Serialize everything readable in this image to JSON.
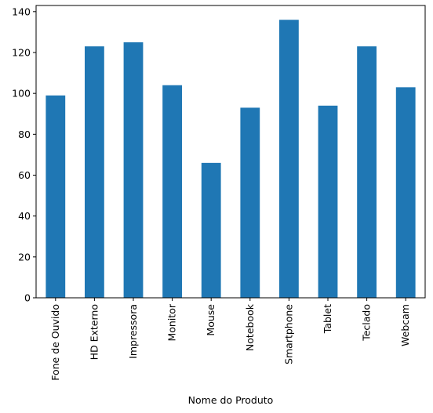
{
  "chart_data": {
    "type": "bar",
    "categories": [
      "Fone de Ouvido",
      "HD Externo",
      "Impressora",
      "Monitor",
      "Mouse",
      "Notebook",
      "Smartphone",
      "Tablet",
      "Teclado",
      "Webcam"
    ],
    "values": [
      99,
      123,
      125,
      104,
      66,
      93,
      136,
      94,
      123,
      103
    ],
    "title": "",
    "xlabel": "Nome do Produto",
    "ylabel": "",
    "ylim": [
      0,
      143
    ],
    "yticks": [
      0,
      20,
      40,
      60,
      80,
      100,
      120,
      140
    ],
    "bar_color": "#1f77b4",
    "grid": false,
    "legend": "none"
  }
}
